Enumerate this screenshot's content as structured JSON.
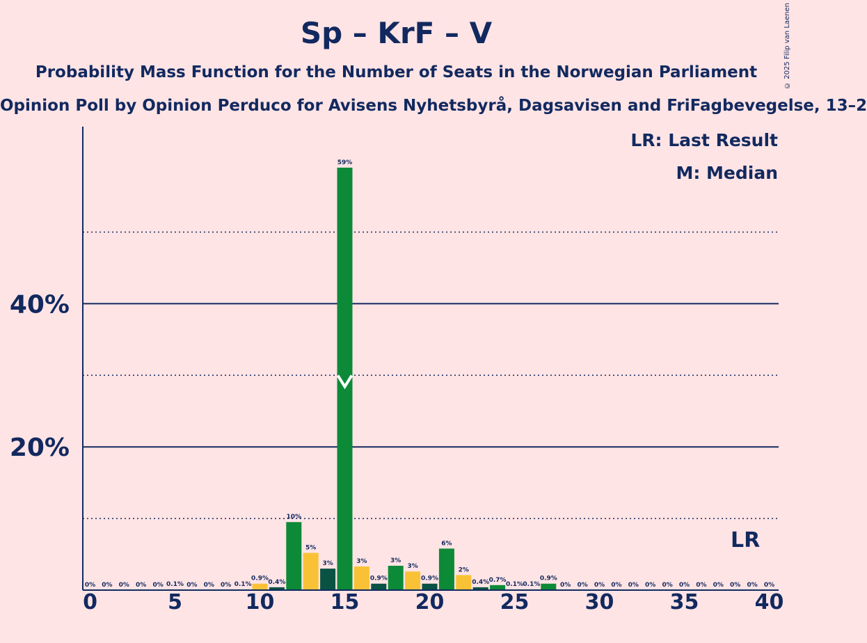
{
  "title": "Sp – KrF – V",
  "subtitle": "Probability Mass Function for the Number of Seats in the Norwegian Parliament",
  "subtitle2": "Opinion Poll by Opinion Perduco for Avisens Nyhetsbyrå, Dagsavisen and FriFagbevegelse, 13–2",
  "copyright": "© 2025 Filip van Laenen",
  "legend": {
    "last_result": "LR: Last Result",
    "median": "M: Median"
  },
  "chart_data": {
    "type": "bar",
    "x": [
      0,
      1,
      2,
      3,
      4,
      5,
      6,
      7,
      8,
      9,
      10,
      11,
      12,
      13,
      14,
      15,
      16,
      17,
      18,
      19,
      20,
      21,
      22,
      23,
      24,
      25,
      26,
      27,
      28,
      29,
      30,
      31,
      32,
      33,
      34,
      35,
      36,
      37,
      38,
      39,
      40
    ],
    "values": [
      0,
      0,
      0,
      0,
      0,
      0.1,
      0,
      0,
      0,
      0.1,
      0.9,
      0.4,
      9.5,
      5.2,
      3,
      59,
      3.3,
      0.9,
      3.4,
      2.6,
      0.9,
      5.8,
      2.1,
      0.4,
      0.7,
      0.1,
      0.1,
      0.9,
      0,
      0,
      0,
      0,
      0,
      0,
      0,
      0,
      0,
      0,
      0,
      0,
      0
    ],
    "labels": [
      "0%",
      "0%",
      "0%",
      "0%",
      "0%",
      "0.1%",
      "0%",
      "0%",
      "0%",
      "0.1%",
      "0.9%",
      "0.4%",
      "10%",
      "5%",
      "3%",
      "59%",
      "3%",
      "0.9%",
      "3%",
      "3%",
      "0.9%",
      "6%",
      "2%",
      "0.4%",
      "0.7%",
      "0.1%",
      "0.1%",
      "0.9%",
      "0%",
      "0%",
      "0%",
      "0%",
      "0%",
      "0%",
      "0%",
      "0%",
      "0%",
      "0%",
      "0%",
      "0%",
      "0%"
    ],
    "bar_colors": [
      "#F9C236",
      "#0A5244",
      "#0D8A37",
      "#F9C236",
      "#0A5244",
      "#0D8A37",
      "#F9C236",
      "#0A5244",
      "#0D8A37",
      "#F9C236",
      "#F9C236",
      "#0A5244",
      "#0D8A37",
      "#F9C236",
      "#0A5244",
      "#0D8A37",
      "#F9C236",
      "#0A5244",
      "#0D8A37",
      "#F9C236",
      "#0A5244",
      "#0D8A37",
      "#F9C236",
      "#0A5244",
      "#0D8A37",
      "#F9C236",
      "#0A5244",
      "#0D8A37",
      "#F9C236",
      "#0A5244",
      "#0D8A37",
      "#F9C236",
      "#0A5244",
      "#0D8A37",
      "#F9C236",
      "#0A5244",
      "#0D8A37",
      "#F9C236",
      "#0A5244",
      "#0D8A37",
      "#F9C236"
    ],
    "ylim": [
      0,
      64
    ],
    "y_ticks": [
      20,
      40
    ],
    "y_tick_labels": [
      "20%",
      "40%"
    ],
    "y_minor_gridlines": [
      10,
      30,
      50
    ],
    "x_ticks": [
      0,
      5,
      10,
      15,
      20,
      25,
      30,
      35,
      40
    ],
    "x_tick_labels": [
      "0",
      "5",
      "10",
      "15",
      "20",
      "25",
      "30",
      "35",
      "40"
    ],
    "median": 15,
    "median_marker": "M",
    "last_result": 39,
    "last_result_marker": "LR",
    "legend_placement": "top-right",
    "colors": {
      "background": "#FFE4E5",
      "text": "#12295F"
    }
  }
}
